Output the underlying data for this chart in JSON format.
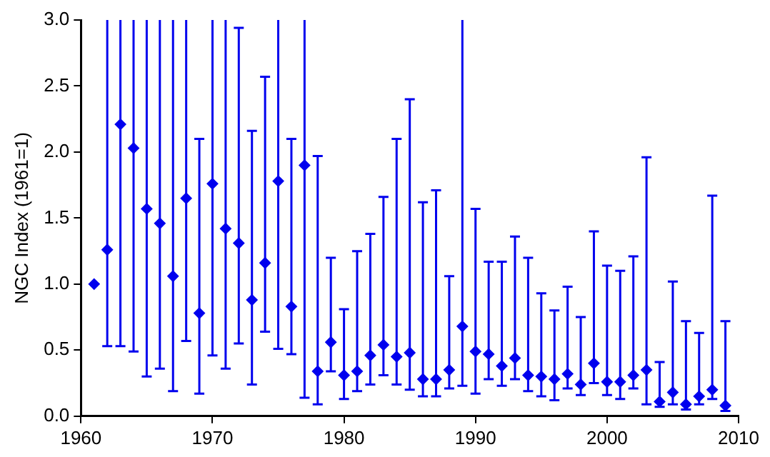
{
  "chart_data": {
    "type": "scatter",
    "ylabel": "NGC Index (1961=1)",
    "x": [
      1961,
      1962,
      1963,
      1964,
      1965,
      1966,
      1967,
      1968,
      1969,
      1970,
      1971,
      1972,
      1973,
      1974,
      1975,
      1976,
      1977,
      1978,
      1979,
      1980,
      1981,
      1982,
      1983,
      1984,
      1985,
      1986,
      1987,
      1988,
      1989,
      1990,
      1991,
      1992,
      1993,
      1994,
      1995,
      1996,
      1997,
      1998,
      1999,
      2000,
      2001,
      2002,
      2003,
      2004,
      2005,
      2006,
      2007,
      2008,
      2009
    ],
    "series": [
      {
        "color": "#0000ee",
        "values": [
          1.0,
          1.26,
          2.21,
          2.03,
          1.57,
          1.46,
          1.06,
          1.65,
          0.78,
          1.76,
          1.42,
          1.31,
          0.88,
          1.16,
          1.78,
          0.83,
          1.9,
          0.34,
          0.56,
          0.31,
          0.34,
          0.46,
          0.54,
          0.45,
          0.48,
          0.28,
          0.28,
          0.35,
          0.68,
          0.49,
          0.47,
          0.38,
          0.44,
          0.31,
          0.3,
          0.28,
          0.32,
          0.24,
          0.4,
          0.26,
          0.26,
          0.31,
          0.35,
          0.11,
          0.18,
          0.09,
          0.15,
          0.2,
          0.08
        ],
        "errors": [
          null,
          [
            0.53,
            3.0
          ],
          [
            0.53,
            3.0
          ],
          [
            0.49,
            3.0
          ],
          [
            0.3,
            3.0
          ],
          [
            0.36,
            3.0
          ],
          [
            0.19,
            3.0
          ],
          [
            0.57,
            3.0
          ],
          [
            0.17,
            2.1
          ],
          [
            0.46,
            3.0
          ],
          [
            0.36,
            3.0
          ],
          [
            0.55,
            2.94
          ],
          [
            0.24,
            2.16
          ],
          [
            0.64,
            2.57
          ],
          [
            0.51,
            3.0
          ],
          [
            0.47,
            2.1
          ],
          [
            0.14,
            3.0
          ],
          [
            0.09,
            1.97
          ],
          [
            0.34,
            1.2
          ],
          [
            0.13,
            0.81
          ],
          [
            0.19,
            1.25
          ],
          [
            0.24,
            1.38
          ],
          [
            0.31,
            1.66
          ],
          [
            0.24,
            2.1
          ],
          [
            0.2,
            2.4
          ],
          [
            0.15,
            1.62
          ],
          [
            0.15,
            1.71
          ],
          [
            0.21,
            1.06
          ],
          [
            0.23,
            3.0
          ],
          [
            0.17,
            1.57
          ],
          [
            0.28,
            1.17
          ],
          [
            0.23,
            1.17
          ],
          [
            0.28,
            1.36
          ],
          [
            0.19,
            1.2
          ],
          [
            0.15,
            0.93
          ],
          [
            0.12,
            0.8
          ],
          [
            0.21,
            0.98
          ],
          [
            0.16,
            0.75
          ],
          [
            0.25,
            1.4
          ],
          [
            0.16,
            1.14
          ],
          [
            0.13,
            1.1
          ],
          [
            0.21,
            1.21
          ],
          [
            0.09,
            1.96
          ],
          [
            0.07,
            0.41
          ],
          [
            0.09,
            1.02
          ],
          [
            0.05,
            0.72
          ],
          [
            0.09,
            0.63
          ],
          [
            0.13,
            1.67
          ],
          [
            0.04,
            0.72
          ]
        ]
      }
    ],
    "xlim": [
      1960,
      2010
    ],
    "xticks": [
      1960,
      1970,
      1980,
      1990,
      2000,
      2010
    ],
    "ylim": [
      0,
      3
    ],
    "yticks": [
      {
        "value": 0,
        "label": "0.0"
      },
      {
        "value": 0.5,
        "label": "0.5"
      },
      {
        "value": 1,
        "label": "1.0"
      },
      {
        "value": 1.5,
        "label": "1.5"
      },
      {
        "value": 2,
        "label": "2.0"
      },
      {
        "value": 2.5,
        "label": "2.5"
      },
      {
        "value": 3,
        "label": "3.0"
      }
    ],
    "marker": "diamond",
    "grid": false,
    "legend": false
  }
}
